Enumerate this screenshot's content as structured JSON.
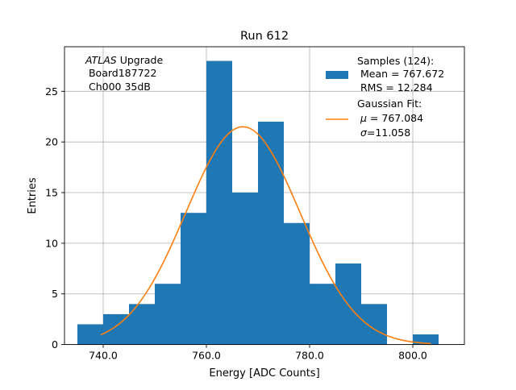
{
  "chart_data": {
    "type": "bar",
    "title": "Run 612",
    "xlabel": "Energy [ADC Counts]",
    "ylabel": "Entries",
    "xlim": [
      732.5,
      810.0
    ],
    "ylim": [
      0,
      29.4
    ],
    "grid": true,
    "bins": [
      {
        "lo": 735,
        "hi": 740,
        "count": 2
      },
      {
        "lo": 740,
        "hi": 745,
        "count": 3
      },
      {
        "lo": 745,
        "hi": 750,
        "count": 4
      },
      {
        "lo": 750,
        "hi": 755,
        "count": 6
      },
      {
        "lo": 755,
        "hi": 760,
        "count": 13
      },
      {
        "lo": 760,
        "hi": 765,
        "count": 28
      },
      {
        "lo": 765,
        "hi": 770,
        "count": 15
      },
      {
        "lo": 770,
        "hi": 775,
        "count": 22
      },
      {
        "lo": 775,
        "hi": 780,
        "count": 12
      },
      {
        "lo": 780,
        "hi": 785,
        "count": 6
      },
      {
        "lo": 785,
        "hi": 790,
        "count": 8
      },
      {
        "lo": 790,
        "hi": 795,
        "count": 4
      },
      {
        "lo": 795,
        "hi": 800,
        "count": 0
      },
      {
        "lo": 800,
        "hi": 805,
        "count": 1
      }
    ],
    "fit": {
      "amplitude": 21.5,
      "mu": 767.084,
      "sigma": 11.058,
      "x_range": [
        739.5,
        803.5
      ]
    },
    "x_ticks": [
      {
        "value": 740,
        "label": "740.0"
      },
      {
        "value": 760,
        "label": "760.0"
      },
      {
        "value": 780,
        "label": "780.0"
      },
      {
        "value": 800,
        "label": "800.0"
      }
    ],
    "y_ticks": [
      {
        "value": 0,
        "label": "0"
      },
      {
        "value": 5,
        "label": "5"
      },
      {
        "value": 10,
        "label": "10"
      },
      {
        "value": 15,
        "label": "15"
      },
      {
        "value": 20,
        "label": "20"
      },
      {
        "value": 25,
        "label": "25"
      }
    ],
    "annotation": {
      "experiment": "ATLAS",
      "experiment_suffix": " Upgrade",
      "line2": " Board187722",
      "line3": " Ch000 35dB"
    },
    "legend": {
      "placement": "top-right",
      "samples": {
        "label": "Samples (124):",
        "line2": " Mean = 767.672",
        "line3": " RMS = 12.284"
      },
      "fit": {
        "label": "Gaussian Fit:",
        "mu_symbol": "μ",
        "mu_text": " = 767.084",
        "sigma_symbol": "σ",
        "sigma_text": "=11.058"
      }
    },
    "colors": {
      "bars": "#1f77b4",
      "fit_line": "#ff7f0e",
      "grid": "#b0b0b0"
    }
  }
}
